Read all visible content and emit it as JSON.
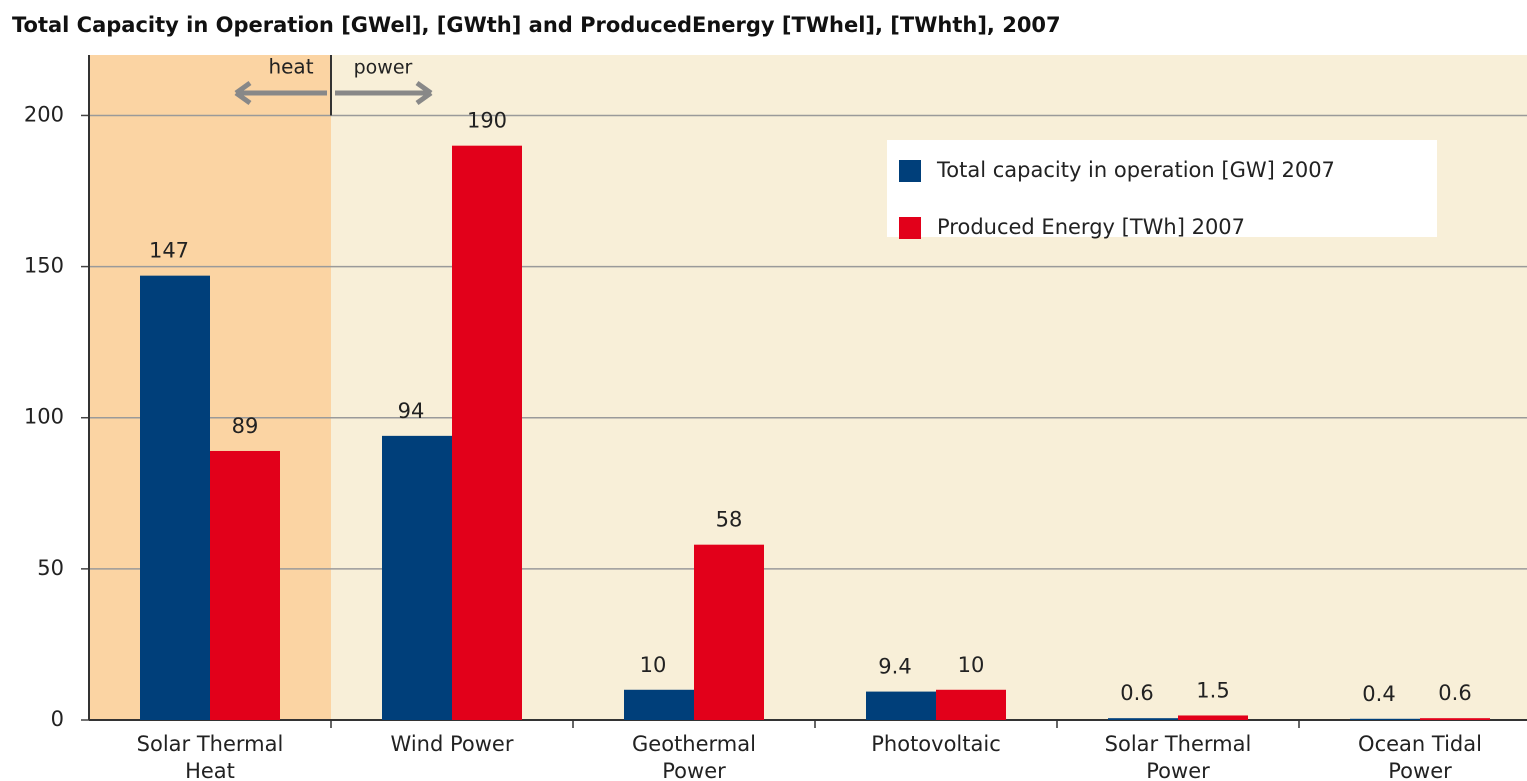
{
  "chart_data": {
    "type": "bar",
    "title": "Total Capacity in Operation [GWel], [GWth] and ProducedEnergy [TWhel], [TWhth], 2007",
    "categories": [
      "Solar Thermal Heat",
      "Wind Power",
      "Geothermal Power",
      "Photovoltaic",
      "Solar Thermal Power",
      "Ocean Tidal Power"
    ],
    "series": [
      {
        "name": "Total capacity in operation [GW] 2007",
        "color": "#003f7a",
        "values": [
          147,
          94,
          10,
          9.4,
          0.6,
          0.4
        ]
      },
      {
        "name": "Produced Energy [TWh] 2007",
        "color": "#e2001a",
        "values": [
          89,
          190,
          58,
          10,
          1.5,
          0.6
        ]
      }
    ],
    "annotations": [
      "heat",
      "power"
    ],
    "ylim": [
      0,
      220
    ],
    "yticks": [
      0,
      50,
      100,
      150,
      200
    ],
    "grid": true,
    "legend": "upper right"
  }
}
